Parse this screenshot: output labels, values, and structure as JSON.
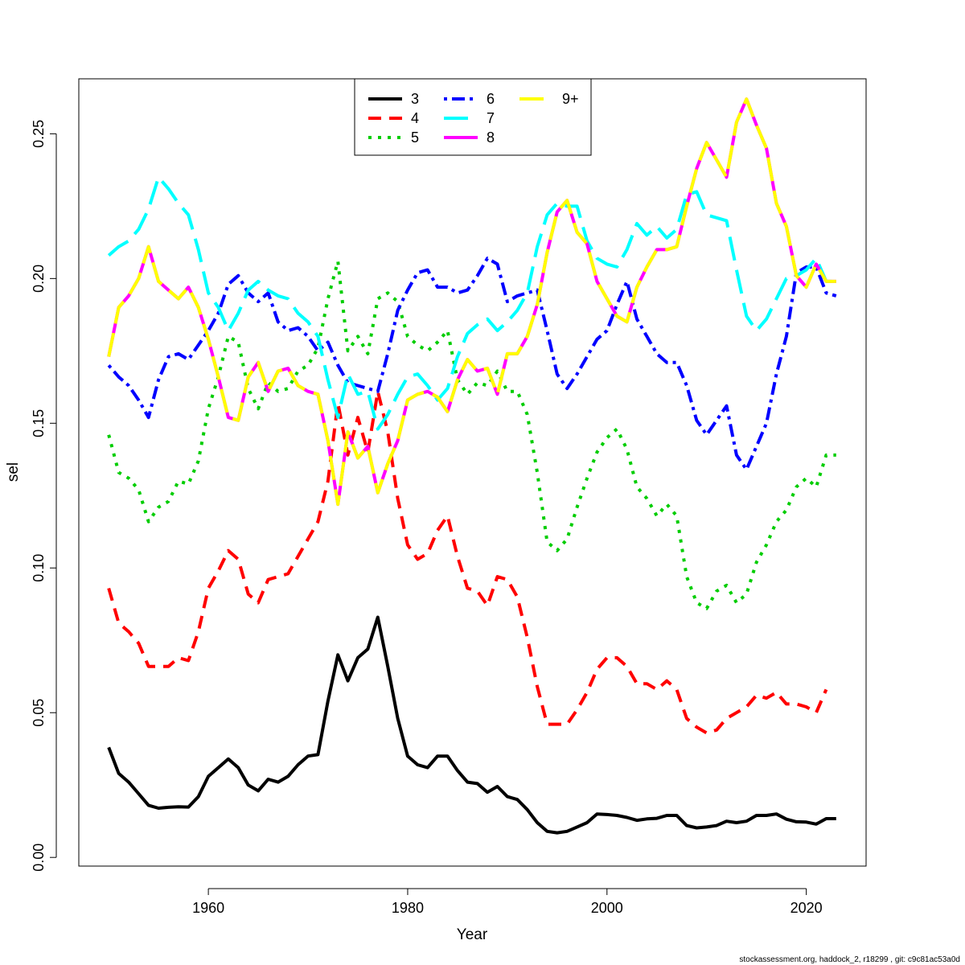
{
  "chart_data": {
    "type": "line",
    "title": "",
    "xlabel": "Year",
    "ylabel": "sel",
    "xlim": [
      1947,
      2026
    ],
    "ylim": [
      -0.003,
      0.269
    ],
    "x_ticks": [
      1960,
      1980,
      2000,
      2020
    ],
    "y_ticks": [
      0.0,
      0.05,
      0.1,
      0.15,
      0.2,
      0.25
    ],
    "y_tick_labels": [
      "0.00",
      "0.05",
      "0.10",
      "0.15",
      "0.20",
      "0.25"
    ],
    "legend_position": "top-center",
    "x": [
      1950,
      1951,
      1952,
      1953,
      1954,
      1955,
      1956,
      1957,
      1958,
      1959,
      1960,
      1961,
      1962,
      1963,
      1964,
      1965,
      1966,
      1967,
      1968,
      1969,
      1970,
      1971,
      1972,
      1973,
      1974,
      1975,
      1976,
      1977,
      1978,
      1979,
      1980,
      1981,
      1982,
      1983,
      1984,
      1985,
      1986,
      1987,
      1988,
      1989,
      1990,
      1991,
      1992,
      1993,
      1994,
      1995,
      1996,
      1997,
      1998,
      1999,
      2000,
      2001,
      2002,
      2003,
      2004,
      2005,
      2006,
      2007,
      2008,
      2009,
      2010,
      2011,
      2012,
      2013,
      2014,
      2015,
      2016,
      2017,
      2018,
      2019,
      2020,
      2021,
      2022,
      2023
    ],
    "series": [
      {
        "name": "3",
        "color": "#000000",
        "dash": "solid",
        "values": [
          0.038,
          0.029,
          0.026,
          0.022,
          0.018,
          0.017,
          0.0173,
          0.0175,
          0.0174,
          0.021,
          0.028,
          0.031,
          0.034,
          0.031,
          0.025,
          0.023,
          0.027,
          0.026,
          0.028,
          0.032,
          0.035,
          0.0355,
          0.054,
          0.07,
          0.061,
          0.069,
          0.072,
          0.083,
          0.066,
          0.048,
          0.035,
          0.032,
          0.031,
          0.035,
          0.035,
          0.03,
          0.026,
          0.0255,
          0.0225,
          0.0245,
          0.021,
          0.02,
          0.0165,
          0.012,
          0.009,
          0.0085,
          0.009,
          0.0105,
          0.012,
          0.015,
          0.0148,
          0.0145,
          0.0138,
          0.0128,
          0.0133,
          0.0135,
          0.0145,
          0.0145,
          0.011,
          0.0102,
          0.0105,
          0.011,
          0.0125,
          0.012,
          0.0125,
          0.0145,
          0.0145,
          0.015,
          0.0132,
          0.0123,
          0.0122,
          0.0115,
          0.0134,
          0.0134
        ]
      },
      {
        "name": "4",
        "color": "#ff0000",
        "dash": "dashed",
        "values": [
          0.093,
          0.081,
          0.078,
          0.074,
          0.066,
          0.066,
          0.066,
          0.069,
          0.068,
          0.078,
          0.093,
          0.099,
          0.106,
          0.103,
          0.091,
          0.088,
          0.096,
          0.097,
          0.098,
          0.104,
          0.11,
          0.116,
          0.13,
          0.157,
          0.139,
          0.152,
          0.14,
          0.161,
          0.147,
          0.124,
          0.108,
          0.103,
          0.105,
          0.113,
          0.118,
          0.104,
          0.093,
          0.092,
          0.087,
          0.097,
          0.096,
          0.09,
          0.076,
          0.059,
          0.046,
          0.046,
          0.046,
          0.051,
          0.057,
          0.065,
          0.069,
          0.069,
          0.066,
          0.06,
          0.06,
          0.058,
          0.061,
          0.058,
          0.048,
          0.045,
          0.043,
          0.044,
          0.048,
          0.05,
          0.052,
          0.056,
          0.055,
          0.057,
          0.053,
          0.053,
          0.052,
          0.05,
          0.058,
          null
        ]
      },
      {
        "name": "5",
        "color": "#00cd00",
        "dash": "dotted",
        "values": [
          0.146,
          0.133,
          0.131,
          0.127,
          0.116,
          0.121,
          0.123,
          0.13,
          0.129,
          0.137,
          0.155,
          0.166,
          0.18,
          0.178,
          0.162,
          0.155,
          0.164,
          0.161,
          0.162,
          0.168,
          0.17,
          0.176,
          0.193,
          0.206,
          0.175,
          0.18,
          0.174,
          0.193,
          0.195,
          0.192,
          0.18,
          0.177,
          0.175,
          0.178,
          0.182,
          0.165,
          0.16,
          0.164,
          0.163,
          0.168,
          0.161,
          0.161,
          0.153,
          0.133,
          0.109,
          0.106,
          0.11,
          0.121,
          0.131,
          0.14,
          0.145,
          0.148,
          0.141,
          0.128,
          0.124,
          0.118,
          0.122,
          0.118,
          0.097,
          0.088,
          0.086,
          0.092,
          0.094,
          0.088,
          0.091,
          0.102,
          0.108,
          0.116,
          0.12,
          0.128,
          0.131,
          0.128,
          0.139,
          0.139
        ]
      },
      {
        "name": "6",
        "color": "#0000ff",
        "dash": "dashdot",
        "values": [
          0.17,
          0.166,
          0.163,
          0.158,
          0.152,
          0.165,
          0.173,
          0.174,
          0.172,
          0.177,
          0.182,
          0.188,
          0.198,
          0.201,
          0.195,
          0.192,
          0.195,
          0.185,
          0.182,
          0.183,
          0.18,
          0.175,
          0.178,
          0.17,
          0.164,
          0.163,
          0.162,
          0.161,
          0.174,
          0.189,
          0.196,
          0.202,
          0.203,
          0.197,
          0.197,
          0.195,
          0.196,
          0.201,
          0.207,
          0.205,
          0.192,
          0.194,
          0.195,
          0.196,
          0.182,
          0.167,
          0.162,
          0.167,
          0.173,
          0.179,
          0.182,
          0.191,
          0.199,
          0.186,
          0.18,
          0.174,
          0.171,
          0.171,
          0.163,
          0.151,
          0.146,
          0.151,
          0.156,
          0.139,
          0.134,
          0.142,
          0.15,
          0.167,
          0.18,
          0.202,
          0.204,
          0.204,
          0.195,
          0.194
        ]
      },
      {
        "name": "7",
        "color": "#00ffff",
        "dash": "longdash",
        "values": [
          0.208,
          0.211,
          0.213,
          0.217,
          0.224,
          0.235,
          0.231,
          0.226,
          0.222,
          0.21,
          0.195,
          0.19,
          0.182,
          0.188,
          0.196,
          0.199,
          0.196,
          0.194,
          0.193,
          0.188,
          0.185,
          0.18,
          0.165,
          0.152,
          0.167,
          0.16,
          0.161,
          0.148,
          0.153,
          0.16,
          0.166,
          0.167,
          0.163,
          0.158,
          0.162,
          0.173,
          0.181,
          0.184,
          0.186,
          0.182,
          0.185,
          0.189,
          0.195,
          0.211,
          0.222,
          0.226,
          0.225,
          0.225,
          0.213,
          0.207,
          0.205,
          0.204,
          0.21,
          0.219,
          0.215,
          0.218,
          0.214,
          0.217,
          0.229,
          0.23,
          0.222,
          0.221,
          0.22,
          0.203,
          0.187,
          0.182,
          0.186,
          0.193,
          0.2,
          0.201,
          0.203,
          0.207,
          0.199,
          0.199
        ]
      },
      {
        "name": "8",
        "color": "#ff00ff",
        "dash": "solid",
        "values": [
          0.173,
          0.19,
          0.194,
          0.2,
          0.211,
          0.199,
          0.196,
          0.193,
          0.197,
          0.19,
          0.179,
          0.166,
          0.152,
          0.151,
          0.166,
          0.171,
          0.161,
          0.168,
          0.169,
          0.163,
          0.161,
          0.16,
          0.144,
          0.122,
          0.147,
          0.138,
          0.142,
          0.126,
          0.136,
          0.144,
          0.158,
          0.16,
          0.161,
          0.159,
          0.154,
          0.165,
          0.172,
          0.168,
          0.169,
          0.16,
          0.174,
          0.174,
          0.18,
          0.191,
          0.209,
          0.223,
          0.227,
          0.216,
          0.212,
          0.199,
          0.193,
          0.187,
          0.185,
          0.197,
          0.204,
          0.21,
          0.21,
          0.211,
          0.225,
          0.238,
          0.247,
          0.241,
          0.235,
          0.254,
          0.262,
          0.253,
          0.245,
          0.226,
          0.218,
          0.201,
          0.197,
          0.205,
          0.199,
          0.199
        ]
      },
      {
        "name": "9+",
        "color": "#ffff00",
        "dash": "longdash",
        "values": [
          0.173,
          0.19,
          0.194,
          0.2,
          0.211,
          0.199,
          0.196,
          0.193,
          0.197,
          0.19,
          0.179,
          0.166,
          0.152,
          0.151,
          0.166,
          0.171,
          0.161,
          0.168,
          0.169,
          0.163,
          0.161,
          0.16,
          0.144,
          0.122,
          0.147,
          0.138,
          0.142,
          0.126,
          0.136,
          0.144,
          0.158,
          0.16,
          0.161,
          0.159,
          0.154,
          0.165,
          0.172,
          0.168,
          0.169,
          0.16,
          0.174,
          0.174,
          0.18,
          0.191,
          0.209,
          0.223,
          0.227,
          0.216,
          0.212,
          0.199,
          0.193,
          0.187,
          0.185,
          0.197,
          0.204,
          0.21,
          0.21,
          0.211,
          0.225,
          0.238,
          0.247,
          0.241,
          0.235,
          0.254,
          0.262,
          0.253,
          0.245,
          0.226,
          0.218,
          0.201,
          0.197,
          0.205,
          0.199,
          0.199
        ]
      }
    ]
  },
  "footnote": "stockassessment.org, haddock_2, r18299 , git: c9c81ac53a0d"
}
